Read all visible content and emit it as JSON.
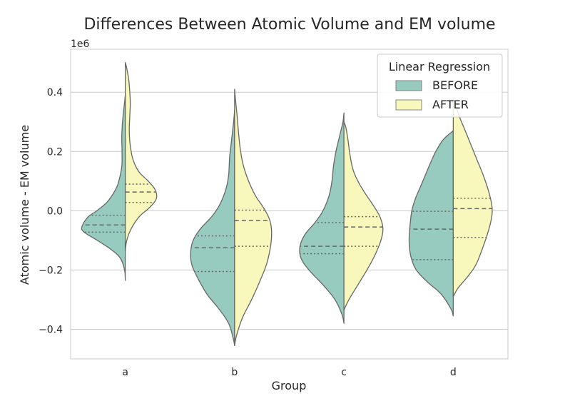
{
  "chart_data": {
    "type": "violin",
    "title": "Differences Between Atomic Volume and EM volume",
    "xlabel": "Group",
    "ylabel": "Atomic volume - EM volume",
    "scale_label": "1e6",
    "categories": [
      "a",
      "b",
      "c",
      "d"
    ],
    "ylim": [
      -0.5,
      0.545
    ],
    "yticks": [
      -0.4,
      -0.2,
      0.0,
      0.2,
      0.4
    ],
    "ytick_labels": [
      "−0.4",
      "−0.2",
      "0.0",
      "0.2",
      "0.4"
    ],
    "grid": true,
    "split": true,
    "inner": "quartile",
    "legend": {
      "title": "Linear Regression",
      "placement": "top-right",
      "entries": [
        "BEFORE",
        "AFTER"
      ]
    },
    "series": [
      {
        "name": "BEFORE",
        "color": "#98cbc0",
        "side": "left",
        "groups": [
          {
            "category": "a",
            "quartiles": [
              -0.072,
              -0.048,
              -0.015
            ],
            "profile": [
              [
                -0.235,
                0.0
              ],
              [
                -0.2,
                0.015
              ],
              [
                -0.16,
                0.1
              ],
              [
                -0.13,
                0.29
              ],
              [
                -0.1,
                0.56
              ],
              [
                -0.07,
                0.84
              ],
              [
                -0.05,
                0.86
              ],
              [
                -0.02,
                0.74
              ],
              [
                0.0,
                0.57
              ],
              [
                0.03,
                0.36
              ],
              [
                0.07,
                0.2
              ],
              [
                0.1,
                0.13
              ],
              [
                0.15,
                0.07
              ],
              [
                0.2,
                0.065
              ],
              [
                0.25,
                0.07
              ],
              [
                0.3,
                0.055
              ],
              [
                0.35,
                0.025
              ],
              [
                0.39,
                0.0
              ]
            ]
          },
          {
            "category": "b",
            "quartiles": [
              -0.205,
              -0.125,
              -0.085
            ],
            "profile": [
              [
                -0.455,
                0.0
              ],
              [
                -0.43,
                0.03
              ],
              [
                -0.38,
                0.12
              ],
              [
                -0.33,
                0.32
              ],
              [
                -0.28,
                0.56
              ],
              [
                -0.22,
                0.76
              ],
              [
                -0.18,
                0.86
              ],
              [
                -0.14,
                0.88
              ],
              [
                -0.1,
                0.83
              ],
              [
                -0.06,
                0.68
              ],
              [
                -0.02,
                0.46
              ],
              [
                0.02,
                0.3
              ],
              [
                0.07,
                0.18
              ],
              [
                0.12,
                0.12
              ],
              [
                0.18,
                0.1
              ],
              [
                0.24,
                0.06
              ],
              [
                0.3,
                0.02
              ],
              [
                0.34,
                0.0
              ]
            ]
          },
          {
            "category": "c",
            "quartiles": [
              -0.145,
              -0.12,
              -0.04
            ],
            "profile": [
              [
                -0.38,
                0.0
              ],
              [
                -0.35,
                0.04
              ],
              [
                -0.3,
                0.18
              ],
              [
                -0.25,
                0.42
              ],
              [
                -0.2,
                0.7
              ],
              [
                -0.16,
                0.86
              ],
              [
                -0.12,
                0.88
              ],
              [
                -0.08,
                0.78
              ],
              [
                -0.04,
                0.58
              ],
              [
                0.0,
                0.42
              ],
              [
                0.05,
                0.3
              ],
              [
                0.1,
                0.24
              ],
              [
                0.15,
                0.21
              ],
              [
                0.2,
                0.16
              ],
              [
                0.25,
                0.09
              ],
              [
                0.3,
                0.02
              ],
              [
                0.33,
                0.0
              ]
            ]
          },
          {
            "category": "d",
            "quartiles": [
              -0.165,
              -0.062,
              -0.002
            ],
            "profile": [
              [
                -0.355,
                0.0
              ],
              [
                -0.33,
                0.05
              ],
              [
                -0.28,
                0.25
              ],
              [
                -0.24,
                0.52
              ],
              [
                -0.2,
                0.74
              ],
              [
                -0.16,
                0.84
              ],
              [
                -0.12,
                0.88
              ],
              [
                -0.08,
                0.88
              ],
              [
                -0.04,
                0.86
              ],
              [
                0.0,
                0.83
              ],
              [
                0.04,
                0.76
              ],
              [
                0.08,
                0.66
              ],
              [
                0.12,
                0.56
              ],
              [
                0.16,
                0.46
              ],
              [
                0.2,
                0.35
              ],
              [
                0.24,
                0.2
              ],
              [
                0.27,
                0.0
              ]
            ]
          }
        ]
      },
      {
        "name": "AFTER",
        "color": "#f8f8bc",
        "side": "right",
        "groups": [
          {
            "category": "a",
            "quartiles": [
              0.028,
              0.063,
              0.09
            ],
            "profile": [
              [
                -0.135,
                0.0
              ],
              [
                -0.1,
                0.03
              ],
              [
                -0.06,
                0.12
              ],
              [
                -0.02,
                0.28
              ],
              [
                0.01,
                0.48
              ],
              [
                0.04,
                0.62
              ],
              [
                0.07,
                0.6
              ],
              [
                0.1,
                0.46
              ],
              [
                0.13,
                0.28
              ],
              [
                0.17,
                0.16
              ],
              [
                0.22,
                0.1
              ],
              [
                0.27,
                0.08
              ],
              [
                0.32,
                0.09
              ],
              [
                0.36,
                0.1
              ],
              [
                0.4,
                0.09
              ],
              [
                0.44,
                0.07
              ],
              [
                0.48,
                0.03
              ],
              [
                0.5,
                0.0
              ]
            ]
          },
          {
            "category": "b",
            "quartiles": [
              -0.12,
              -0.033,
              0.002
            ],
            "profile": [
              [
                -0.455,
                0.0
              ],
              [
                -0.42,
                0.04
              ],
              [
                -0.36,
                0.16
              ],
              [
                -0.3,
                0.34
              ],
              [
                -0.24,
                0.5
              ],
              [
                -0.18,
                0.64
              ],
              [
                -0.12,
                0.72
              ],
              [
                -0.07,
                0.74
              ],
              [
                -0.03,
                0.7
              ],
              [
                0.01,
                0.58
              ],
              [
                0.05,
                0.42
              ],
              [
                0.1,
                0.28
              ],
              [
                0.15,
                0.18
              ],
              [
                0.2,
                0.12
              ],
              [
                0.26,
                0.08
              ],
              [
                0.32,
                0.05
              ],
              [
                0.37,
                0.02
              ],
              [
                0.41,
                0.0
              ]
            ]
          },
          {
            "category": "c",
            "quartiles": [
              -0.12,
              -0.055,
              -0.02
            ],
            "profile": [
              [
                -0.335,
                0.0
              ],
              [
                -0.3,
                0.1
              ],
              [
                -0.25,
                0.28
              ],
              [
                -0.2,
                0.46
              ],
              [
                -0.15,
                0.62
              ],
              [
                -0.1,
                0.74
              ],
              [
                -0.06,
                0.78
              ],
              [
                -0.02,
                0.72
              ],
              [
                0.02,
                0.58
              ],
              [
                0.06,
                0.42
              ],
              [
                0.1,
                0.28
              ],
              [
                0.14,
                0.18
              ],
              [
                0.19,
                0.12
              ],
              [
                0.24,
                0.08
              ],
              [
                0.28,
                0.04
              ],
              [
                0.3,
                0.0
              ]
            ]
          },
          {
            "category": "d",
            "quartiles": [
              -0.09,
              0.007,
              0.042
            ],
            "profile": [
              [
                -0.29,
                0.0
              ],
              [
                -0.26,
                0.1
              ],
              [
                -0.22,
                0.3
              ],
              [
                -0.18,
                0.46
              ],
              [
                -0.12,
                0.6
              ],
              [
                -0.07,
                0.7
              ],
              [
                -0.03,
                0.76
              ],
              [
                0.0,
                0.78
              ],
              [
                0.03,
                0.76
              ],
              [
                0.07,
                0.7
              ],
              [
                0.12,
                0.6
              ],
              [
                0.17,
                0.48
              ],
              [
                0.22,
                0.36
              ],
              [
                0.27,
                0.24
              ],
              [
                0.31,
                0.14
              ],
              [
                0.35,
                0.06
              ],
              [
                0.38,
                0.0
              ]
            ]
          }
        ]
      }
    ]
  }
}
